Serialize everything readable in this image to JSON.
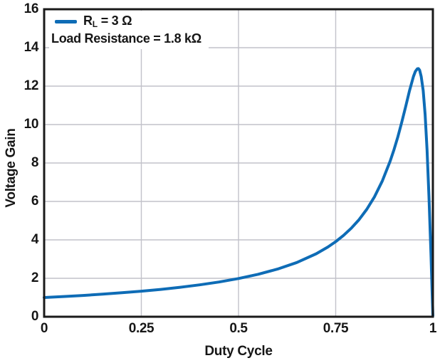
{
  "colors": {
    "curve": "#0e6cb6",
    "grid": "#c2c2ca",
    "axis": "#1a1a1a",
    "text": "#161616",
    "background": "#ffffff"
  },
  "legend": {
    "series_label": {
      "pre": "R",
      "sub": "L",
      "post": " = 3 Ω"
    },
    "note": "Load Resistance = 1.8 kΩ"
  },
  "chart_data": {
    "type": "line",
    "title": "",
    "xlabel": "Duty Cycle",
    "ylabel": "Voltage Gain",
    "xlim": [
      0,
      1
    ],
    "ylim": [
      0,
      16
    ],
    "x_ticks": [
      0,
      0.25,
      0.5,
      0.75,
      1
    ],
    "x_tick_labels": [
      "0",
      "0.25",
      "0.5",
      "0.75",
      "1"
    ],
    "y_ticks": [
      0,
      2,
      4,
      6,
      8,
      10,
      12,
      14,
      16
    ],
    "y_tick_labels": [
      "0",
      "2",
      "4",
      "6",
      "8",
      "10",
      "12",
      "14",
      "16"
    ],
    "grid": true,
    "legend_position": "top-left",
    "series": [
      {
        "name": "RL = 3 Ω, Load Resistance = 1.8 kΩ",
        "peak": {
          "x": 0.96,
          "y": 12.9
        },
        "points": [
          [
            0,
            0.999
          ],
          [
            0.05,
            1.051
          ],
          [
            0.1,
            1.109
          ],
          [
            0.15,
            1.174
          ],
          [
            0.2,
            1.247
          ],
          [
            0.25,
            1.33
          ],
          [
            0.3,
            1.424
          ],
          [
            0.35,
            1.533
          ],
          [
            0.4,
            1.66
          ],
          [
            0.45,
            1.809
          ],
          [
            0.5,
            1.988
          ],
          [
            0.55,
            2.206
          ],
          [
            0.6,
            2.477
          ],
          [
            0.65,
            2.823
          ],
          [
            0.7,
            3.279
          ],
          [
            0.73,
            3.629
          ],
          [
            0.75,
            3.906
          ],
          [
            0.77,
            4.228
          ],
          [
            0.79,
            4.605
          ],
          [
            0.81,
            5.053
          ],
          [
            0.83,
            5.592
          ],
          [
            0.85,
            6.25
          ],
          [
            0.87,
            7.065
          ],
          [
            0.89,
            8.088
          ],
          [
            0.9,
            8.696
          ],
          [
            0.91,
            9.375
          ],
          [
            0.92,
            10.127
          ],
          [
            0.93,
            10.938
          ],
          [
            0.94,
            11.765
          ],
          [
            0.95,
            12.5
          ],
          [
            0.955,
            12.766
          ],
          [
            0.96,
            12.903
          ],
          [
            0.963,
            12.91
          ],
          [
            0.966,
            12.83
          ],
          [
            0.97,
            12.5
          ],
          [
            0.975,
            11.765
          ],
          [
            0.98,
            10.526
          ],
          [
            0.985,
            8.696
          ],
          [
            0.99,
            6.25
          ],
          [
            0.995,
            3.279
          ],
          [
            0.998,
            1.332
          ],
          [
            1,
            0.05
          ]
        ]
      }
    ]
  }
}
